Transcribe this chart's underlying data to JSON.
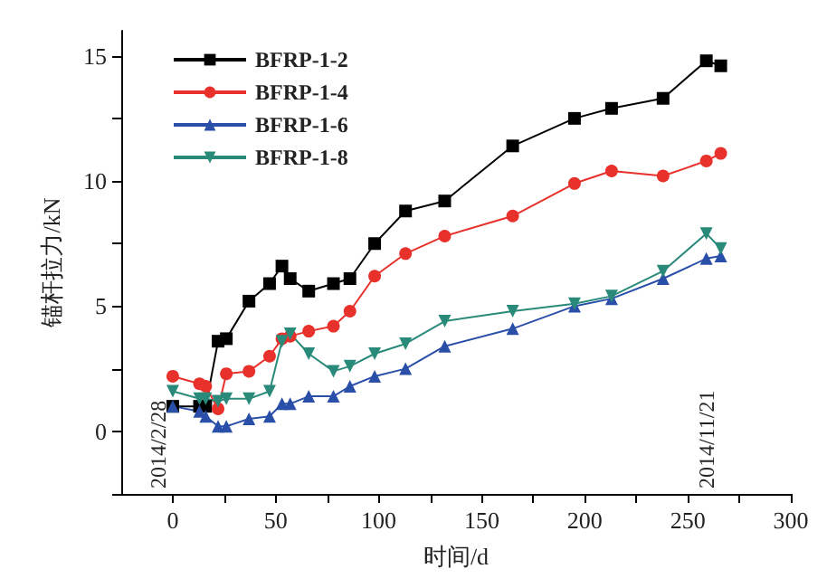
{
  "chart_data": {
    "type": "line",
    "xlabel": "时间/d",
    "ylabel": "锚杆拉力/kN",
    "x": [
      0,
      13,
      16,
      22,
      26,
      37,
      47,
      53,
      57,
      66,
      78,
      86,
      98,
      113,
      132,
      165,
      195,
      213,
      238,
      259,
      266
    ],
    "series": [
      {
        "name": "BFRP-1-2",
        "color": "#000000",
        "marker": "square",
        "values": [
          1.0,
          1.0,
          1.0,
          3.6,
          3.7,
          5.2,
          5.9,
          6.6,
          6.1,
          5.6,
          5.9,
          6.1,
          7.5,
          8.8,
          9.2,
          11.4,
          12.5,
          12.9,
          13.3,
          14.8,
          14.6
        ]
      },
      {
        "name": "BFRP-1-4",
        "color": "#e8312a",
        "marker": "circle",
        "values": [
          2.2,
          1.9,
          1.8,
          0.9,
          2.3,
          2.4,
          3.0,
          3.7,
          3.8,
          4.0,
          4.2,
          4.8,
          6.2,
          7.1,
          7.8,
          8.6,
          9.9,
          10.4,
          10.2,
          10.8,
          11.1
        ]
      },
      {
        "name": "BFRP-1-6",
        "color": "#2a4fa8",
        "marker": "triangle",
        "values": [
          1.0,
          0.8,
          0.6,
          0.2,
          0.2,
          0.5,
          0.6,
          1.1,
          1.1,
          1.4,
          1.4,
          1.8,
          2.2,
          2.5,
          3.4,
          4.1,
          5.0,
          5.3,
          6.1,
          6.9,
          7.0
        ]
      },
      {
        "name": "BFRP-1-8",
        "color": "#2a8a7a",
        "marker": "triangle-down",
        "values": [
          1.6,
          1.3,
          1.3,
          1.2,
          1.3,
          1.3,
          1.6,
          3.6,
          3.9,
          3.1,
          2.4,
          2.6,
          3.1,
          3.5,
          4.4,
          4.8,
          5.1,
          5.4,
          6.4,
          7.9,
          7.3
        ]
      }
    ],
    "xlim": [
      -25,
      300
    ],
    "xticks": [
      0,
      {
        "value": 25,
        "label": null
      },
      50,
      {
        "value": 75,
        "label": null
      },
      100,
      {
        "value": 125,
        "label": null
      },
      150,
      {
        "value": 175,
        "label": null
      },
      200,
      {
        "value": 225,
        "label": null
      },
      250,
      {
        "value": 275,
        "label": null
      },
      300
    ],
    "ylim": [
      -2.5,
      16
    ],
    "yticks": [
      {
        "value": -2.5,
        "label": null
      },
      0,
      {
        "value": 2.5,
        "label": null
      },
      5,
      {
        "value": 7.5,
        "label": null
      },
      10,
      {
        "value": 12.5,
        "label": null
      },
      15
    ],
    "annotations": [
      "2014/2/28",
      "2014/11/21"
    ],
    "legend": "top left"
  }
}
